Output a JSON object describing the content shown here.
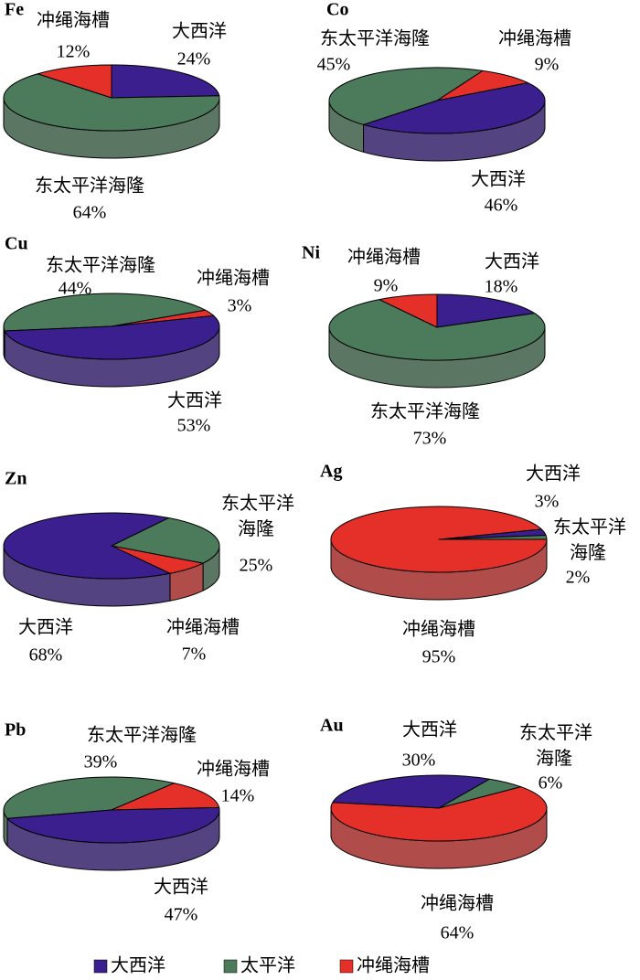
{
  "chart_data": [
    {
      "type": "pie3d",
      "title": "Fe",
      "startangle": 0,
      "categories": [
        "大西洋",
        "东太平洋海隆",
        "冲绳海槽"
      ],
      "values": [
        24,
        64,
        12
      ],
      "value_labels": [
        "24%",
        "64%",
        "12%"
      ],
      "colors": [
        "#3b1f8e",
        "#4b7b5b",
        "#e5302a"
      ]
    },
    {
      "type": "pie3d",
      "title": "Co",
      "startangle": 25,
      "categories": [
        "冲绳海槽",
        "大西洋",
        "东太平洋海隆"
      ],
      "values": [
        9,
        46,
        45
      ],
      "value_labels": [
        "9%",
        "46%",
        "45%"
      ],
      "colors": [
        "#e5302a",
        "#3b1f8e",
        "#4b7b5b"
      ]
    },
    {
      "type": "pie3d",
      "title": "Cu",
      "startangle": 262,
      "categories": [
        "东太平洋海隆",
        "冲绳海槽",
        "大西洋"
      ],
      "values": [
        44,
        3,
        53
      ],
      "value_labels": [
        "44%",
        "3%",
        "53%"
      ],
      "colors": [
        "#4b7b5b",
        "#e5302a",
        "#3b1f8e"
      ]
    },
    {
      "type": "pie3d",
      "title": "Ni",
      "startangle": 0,
      "categories": [
        "大西洋",
        "东太平洋海隆",
        "冲绳海槽"
      ],
      "values": [
        18,
        73,
        9
      ],
      "value_labels": [
        "18%",
        "73%",
        "9%"
      ],
      "colors": [
        "#3b1f8e",
        "#4b7b5b",
        "#e5302a"
      ]
    },
    {
      "type": "pie3d",
      "title": "Zn",
      "startangle": 32,
      "categories": [
        "东太平洋海隆",
        "冲绳海槽",
        "大西洋"
      ],
      "values": [
        25,
        7,
        68
      ],
      "value_labels": [
        "25%",
        "7%",
        "68%"
      ],
      "colors": [
        "#4b7b5b",
        "#e5302a",
        "#3b1f8e"
      ]
    },
    {
      "type": "pie3d",
      "title": "Ag",
      "startangle": 72,
      "categories": [
        "大西洋",
        "东太平洋海隆",
        "冲绳海槽"
      ],
      "values": [
        3,
        2,
        95
      ],
      "value_labels": [
        "3%",
        "2%",
        "95%"
      ],
      "colors": [
        "#3b1f8e",
        "#4b7b5b",
        "#e5302a"
      ]
    },
    {
      "type": "pie3d",
      "title": "Pb",
      "startangle": 255,
      "categories": [
        "东太平洋海隆",
        "冲绳海槽",
        "大西洋"
      ],
      "values": [
        39,
        14,
        47
      ],
      "value_labels": [
        "39%",
        "14%",
        "47%"
      ],
      "colors": [
        "#4b7b5b",
        "#e5302a",
        "#3b1f8e"
      ]
    },
    {
      "type": "pie3d",
      "title": "Au",
      "startangle": 280,
      "categories": [
        "大西洋",
        "东太平洋海隆",
        "冲绳海槽"
      ],
      "values": [
        30,
        6,
        64
      ],
      "value_labels": [
        "30%",
        "6%",
        "64%"
      ],
      "colors": [
        "#3b1f8e",
        "#4b7b5b",
        "#e5302a"
      ]
    }
  ],
  "legend": [
    {
      "name": "大西洋",
      "color": "#3b1f8e"
    },
    {
      "name": "太平洋",
      "color": "#4b7b5b"
    },
    {
      "name": "冲绳海槽",
      "color": "#e5302a"
    }
  ]
}
